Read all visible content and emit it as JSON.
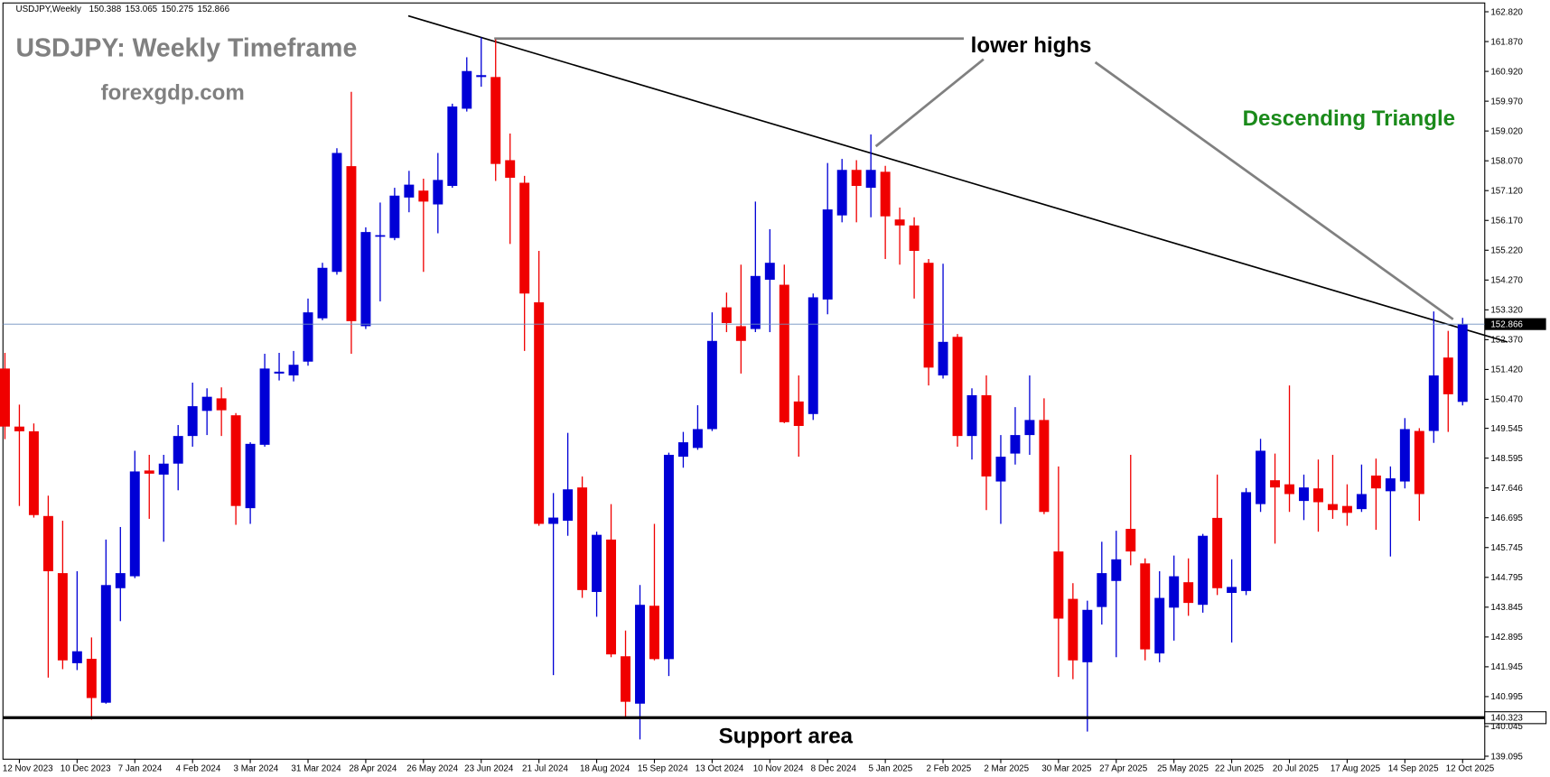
{
  "chart_data": {
    "type": "candlestick",
    "header": {
      "symbol": "USDJPY,Weekly",
      "values": [
        150.388,
        153.065,
        150.275,
        152.866
      ]
    },
    "title": "USDJPY: Weekly Timeframe",
    "subtitle": "forexgdp.com",
    "annotations": {
      "highs": "lower highs",
      "pattern": "Descending Triangle",
      "support": "Support area"
    },
    "up_color": "#0000d6",
    "down_color": "#f00000",
    "categories": [
      null,
      "12 Nov 2023",
      null,
      null,
      null,
      "10 Dec 2023",
      null,
      null,
      null,
      "7 Jan 2024",
      null,
      null,
      null,
      "4 Feb 2024",
      null,
      null,
      null,
      "3 Mar 2024",
      null,
      null,
      null,
      "31 Mar 2024",
      null,
      null,
      null,
      "28 Apr 2024",
      null,
      null,
      null,
      "26 May 2024",
      null,
      null,
      null,
      "23 Jun 2024",
      null,
      null,
      null,
      "21 Jul 2024",
      null,
      null,
      null,
      "18 Aug 2024",
      null,
      null,
      null,
      "15 Sep 2024",
      null,
      null,
      null,
      "13 Oct 2024",
      null,
      null,
      null,
      "10 Nov 2024",
      null,
      null,
      null,
      "8 Dec 2024",
      null,
      null,
      null,
      "5 Jan 2025",
      null,
      null,
      null,
      "2 Feb 2025",
      null,
      null,
      null,
      "2 Mar 2025",
      null,
      null,
      null,
      "30 Mar 2025",
      null,
      null,
      null,
      "27 Apr 2025",
      null,
      null,
      null,
      "25 May 2025",
      null,
      null,
      null,
      "22 Jun 2025",
      null,
      null,
      null,
      "20 Jul 2025",
      null,
      null,
      null,
      "17 Aug 2025",
      null,
      null,
      null,
      "14 Sep 2025",
      null,
      null,
      null,
      "12 Oct 2025"
    ],
    "open": [
      151.45,
      149.6,
      149.45,
      146.75,
      144.93,
      142.06,
      142.2,
      140.8,
      144.45,
      144.83,
      148.2,
      148.07,
      148.42,
      149.3,
      150.1,
      150.5,
      149.96,
      147.0,
      149.02,
      151.29,
      151.23,
      151.67,
      153.05,
      154.53,
      157.9,
      152.8,
      155.65,
      155.61,
      156.9,
      157.12,
      156.68,
      157.27,
      159.73,
      160.74,
      160.74,
      158.09,
      157.37,
      153.56,
      146.5,
      146.6,
      147.66,
      144.33,
      146.0,
      142.28,
      140.77,
      143.89,
      142.19,
      148.64,
      148.92,
      149.52,
      153.4,
      152.8,
      152.71,
      154.28,
      154.12,
      150.4,
      150.0,
      153.65,
      156.33,
      157.78,
      157.21,
      157.72,
      156.2,
      156.01,
      154.82,
      151.23,
      152.46,
      149.3,
      150.6,
      147.85,
      148.74,
      149.33,
      149.81,
      145.62,
      144.11,
      142.09,
      143.85,
      144.68,
      146.34,
      145.24,
      142.37,
      143.83,
      144.64,
      143.92,
      146.69,
      144.3,
      144.36,
      147.13,
      147.89,
      147.76,
      147.23,
      147.63,
      147.13,
      147.07,
      146.97,
      148.04,
      147.54,
      147.85,
      149.46,
      149.46,
      151.8,
      150.388
    ],
    "high": [
      151.95,
      150.3,
      149.7,
      147.4,
      146.6,
      144.99,
      142.88,
      146.0,
      146.4,
      148.83,
      148.7,
      148.7,
      149.65,
      151.0,
      150.82,
      150.85,
      150.03,
      149.1,
      151.92,
      151.95,
      152.01,
      153.68,
      154.82,
      158.47,
      160.27,
      155.95,
      156.74,
      157.21,
      157.75,
      157.5,
      158.32,
      159.89,
      161.37,
      162.0,
      161.94,
      158.94,
      157.59,
      155.2,
      147.48,
      149.4,
      148.01,
      146.25,
      147.13,
      143.1,
      144.55,
      146.5,
      148.77,
      149.43,
      150.28,
      153.24,
      153.87,
      154.76,
      156.77,
      155.89,
      154.76,
      151.23,
      153.84,
      158.0,
      158.13,
      158.09,
      158.91,
      157.91,
      156.58,
      156.27,
      154.94,
      154.79,
      152.55,
      150.82,
      151.23,
      149.33,
      150.22,
      151.23,
      150.5,
      148.33,
      144.61,
      144.05,
      145.93,
      146.28,
      148.7,
      145.4,
      144.99,
      145.49,
      145.4,
      146.18,
      148.07,
      145.37,
      147.64,
      149.21,
      148.74,
      150.91,
      148.07,
      148.55,
      148.7,
      147.76,
      148.39,
      148.58,
      148.33,
      149.87,
      149.55,
      153.27,
      152.65,
      153.065
    ],
    "low": [
      149.2,
      147.07,
      146.7,
      141.6,
      141.87,
      141.84,
      140.26,
      140.77,
      143.4,
      144.77,
      146.66,
      145.93,
      147.57,
      148.96,
      149.33,
      149.3,
      146.47,
      146.5,
      148.96,
      151.07,
      151.04,
      151.54,
      152.99,
      154.44,
      151.92,
      152.71,
      153.59,
      155.54,
      156.43,
      154.53,
      155.76,
      157.21,
      159.64,
      160.43,
      157.43,
      155.42,
      152.01,
      146.44,
      141.68,
      146.12,
      144.14,
      143.54,
      142.25,
      140.33,
      139.63,
      142.15,
      141.65,
      148.29,
      148.86,
      149.46,
      152.61,
      151.29,
      152.61,
      152.61,
      149.71,
      148.64,
      149.81,
      153.18,
      156.11,
      156.11,
      156.27,
      154.94,
      154.76,
      153.68,
      150.91,
      151.13,
      148.96,
      148.55,
      146.94,
      146.5,
      148.39,
      148.7,
      146.81,
      141.62,
      141.55,
      139.88,
      143.29,
      142.25,
      145.18,
      142.15,
      142.09,
      142.78,
      143.57,
      143.67,
      144.23,
      142.72,
      144.23,
      146.88,
      145.87,
      146.88,
      146.62,
      146.25,
      146.66,
      146.44,
      146.88,
      146.31,
      145.46,
      147.63,
      146.6,
      149.08,
      149.43,
      150.275
    ],
    "close": [
      149.6,
      149.45,
      146.78,
      144.99,
      142.15,
      142.44,
      140.95,
      144.55,
      144.93,
      148.17,
      148.1,
      148.42,
      149.3,
      150.25,
      150.55,
      150.12,
      147.07,
      149.05,
      151.45,
      151.35,
      151.57,
      153.24,
      154.66,
      158.32,
      152.96,
      155.8,
      155.7,
      156.96,
      157.31,
      156.77,
      157.46,
      159.8,
      160.93,
      160.8,
      157.97,
      157.53,
      153.84,
      146.5,
      146.7,
      147.6,
      144.39,
      146.15,
      142.34,
      140.83,
      143.92,
      142.19,
      148.7,
      149.1,
      149.52,
      152.33,
      152.9,
      152.33,
      154.4,
      154.82,
      149.74,
      149.62,
      153.72,
      156.52,
      157.78,
      157.27,
      157.78,
      156.3,
      156.01,
      155.2,
      151.48,
      152.3,
      149.3,
      150.6,
      148.01,
      148.64,
      149.33,
      149.81,
      146.88,
      143.48,
      142.15,
      143.76,
      144.93,
      145.37,
      145.62,
      142.5,
      144.14,
      144.83,
      143.98,
      146.12,
      144.45,
      144.49,
      147.51,
      148.83,
      147.66,
      147.45,
      147.66,
      147.19,
      146.94,
      146.85,
      147.45,
      147.63,
      147.95,
      149.52,
      147.45,
      151.23,
      150.63,
      152.866
    ],
    "ylim": [
      139.0,
      163.1
    ],
    "yticks": [
      {
        "value": 162.82,
        "label": "162.820"
      },
      {
        "value": 161.87,
        "label": "161.870"
      },
      {
        "value": 160.92,
        "label": "160.920"
      },
      {
        "value": 159.97,
        "label": "159.970"
      },
      {
        "value": 159.02,
        "label": "159.020"
      },
      {
        "value": 158.07,
        "label": "158.070"
      },
      {
        "value": 157.12,
        "label": "157.120"
      },
      {
        "value": 156.17,
        "label": "156.170"
      },
      {
        "value": 155.22,
        "label": "155.220"
      },
      {
        "value": 154.27,
        "label": "154.270"
      },
      {
        "value": 153.32,
        "label": "153.320"
      },
      {
        "value": 152.37,
        "label": "152.370"
      },
      {
        "value": 151.42,
        "label": "151.420"
      },
      {
        "value": 150.47,
        "label": "150.470"
      },
      149.545,
      148.595,
      147.646,
      146.695,
      145.745,
      144.795,
      143.845,
      142.895,
      141.945,
      140.995,
      140.045,
      139.095
    ],
    "current_price": {
      "value": 152.866,
      "color": "#6f8fbf"
    },
    "support_level": {
      "value": 140.323,
      "color": "#000000"
    },
    "grid": false
  }
}
